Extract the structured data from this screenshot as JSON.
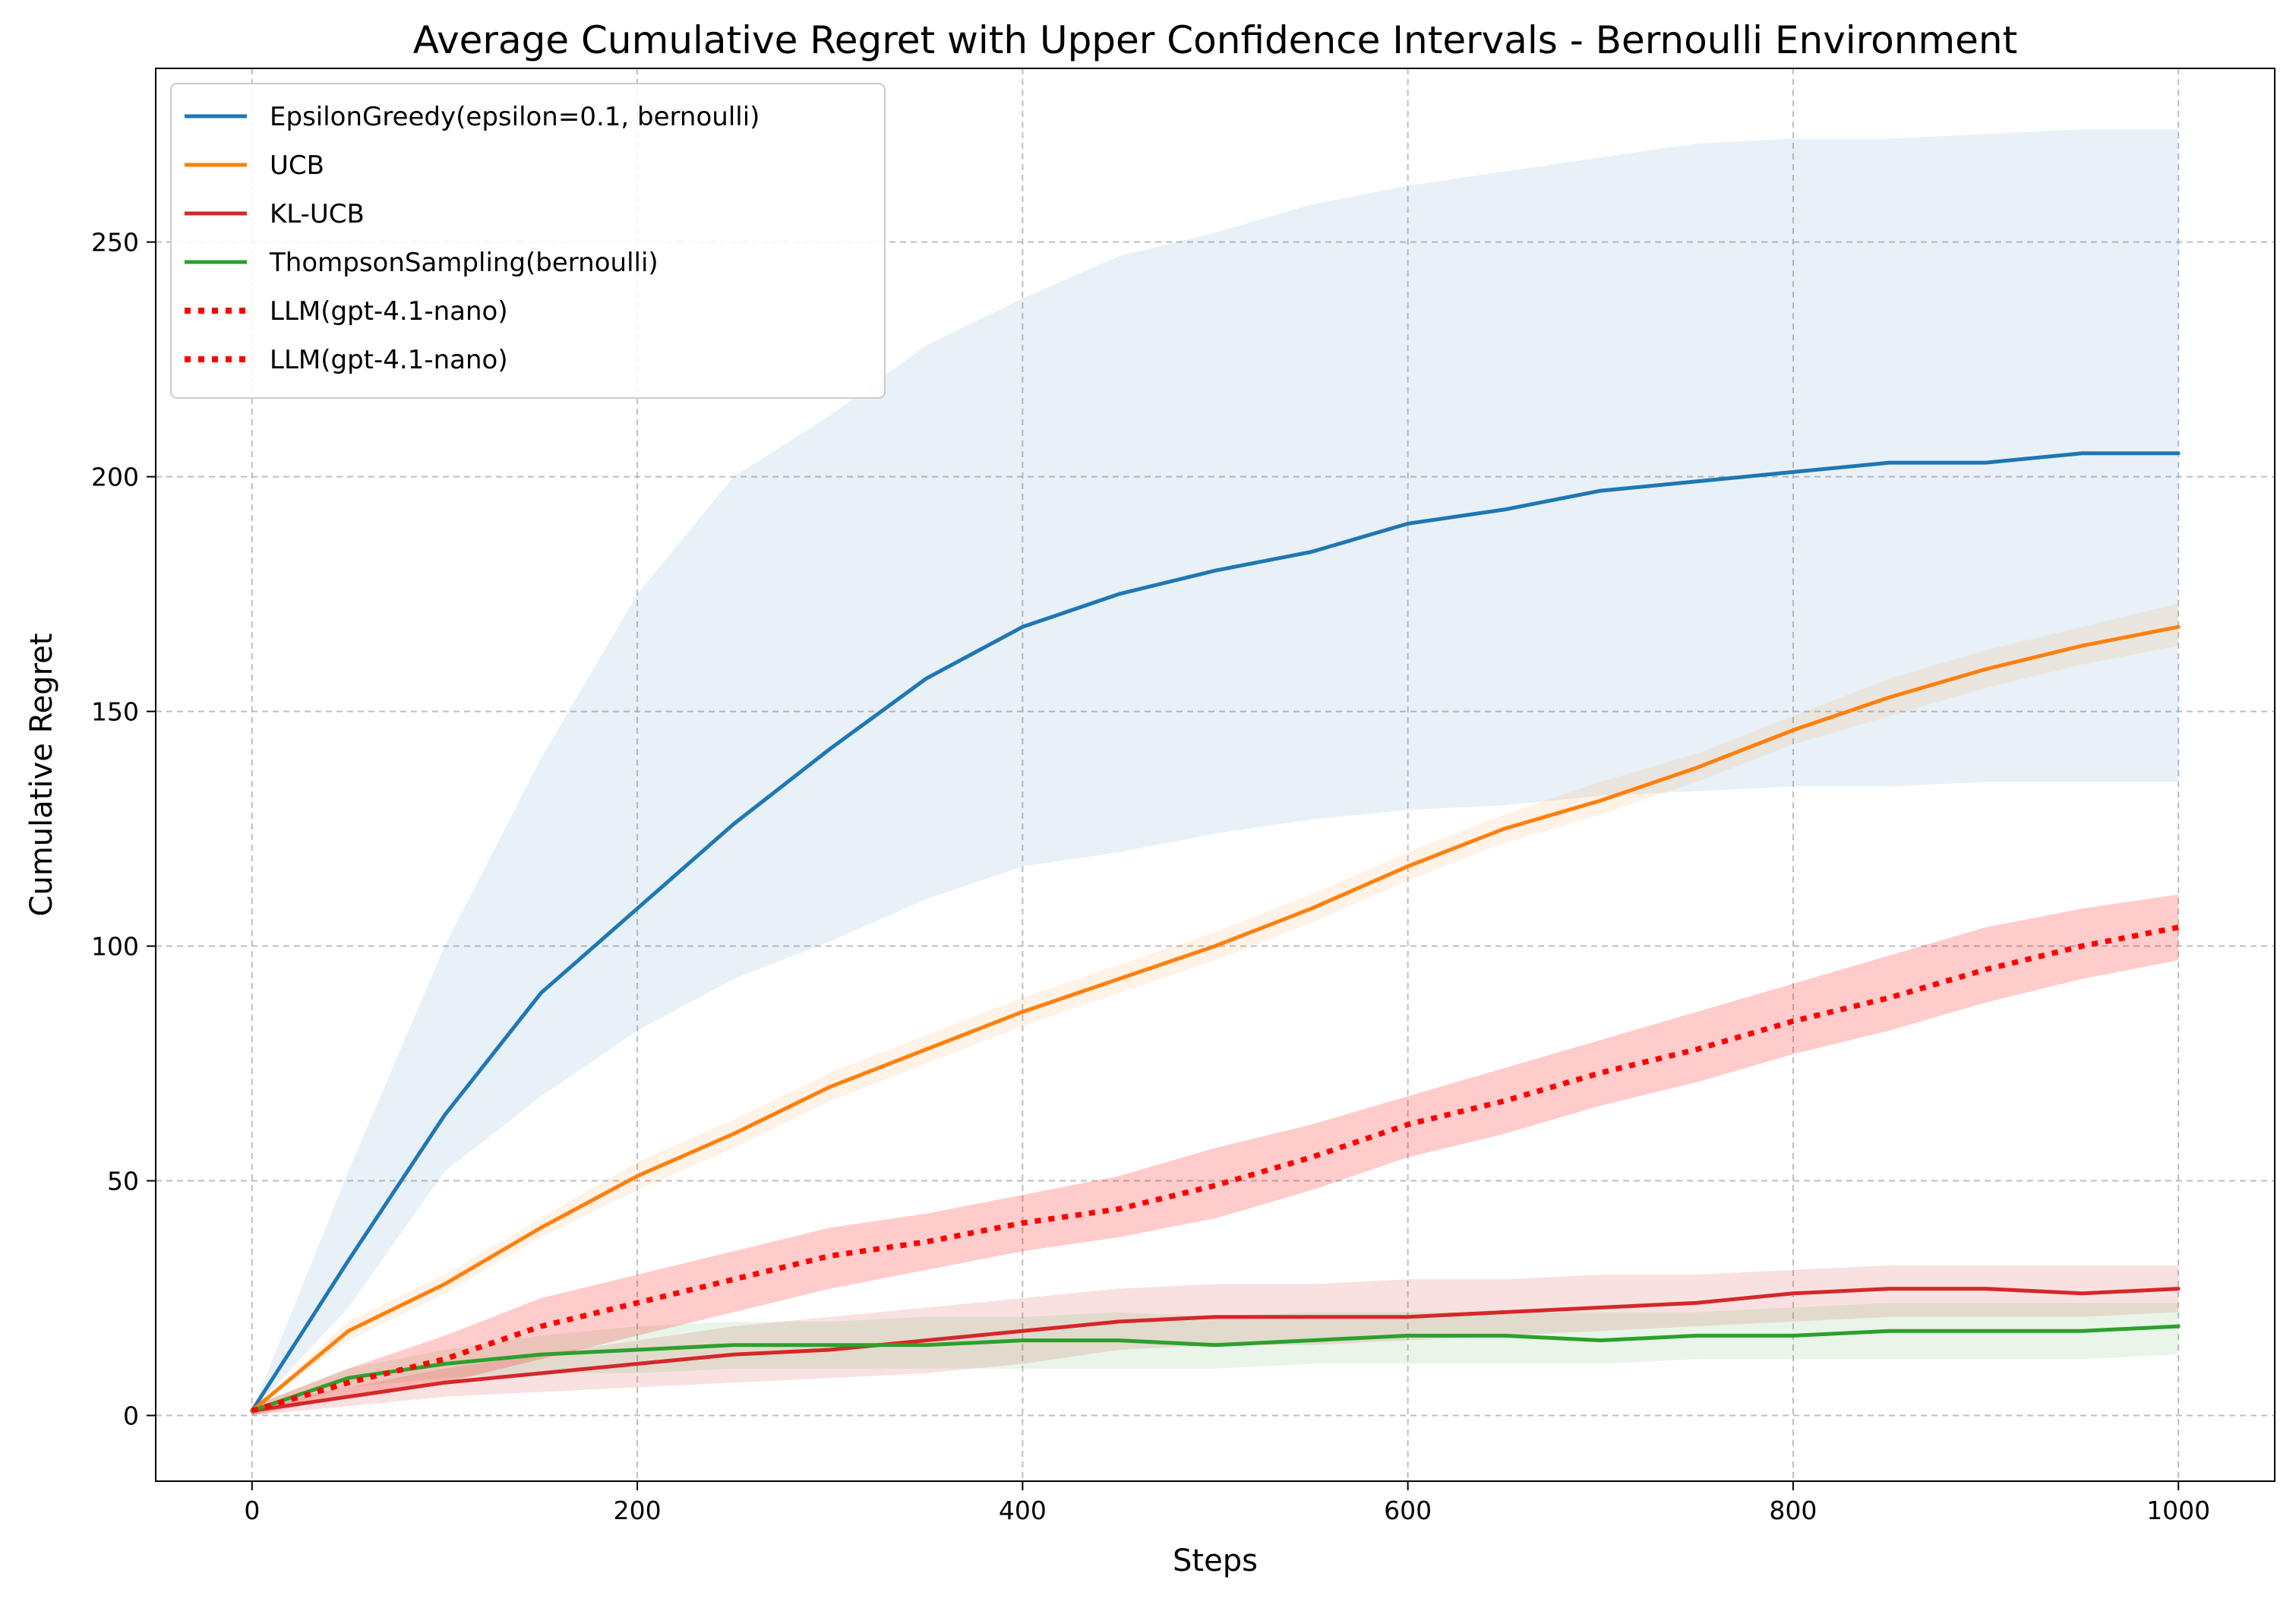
{
  "chart_data": {
    "type": "line",
    "title": "Average Cumulative Regret with Upper Confidence Intervals - Bernoulli Environment",
    "xlabel": "Steps",
    "ylabel": "Cumulative Regret",
    "xlim": [
      -50,
      1050
    ],
    "ylim": [
      -14,
      287
    ],
    "xticks": [
      0,
      200,
      400,
      600,
      800,
      1000
    ],
    "yticks": [
      0,
      50,
      100,
      150,
      200,
      250
    ],
    "xtick_labels": [
      "0",
      "200",
      "400",
      "600",
      "800",
      "1000"
    ],
    "ytick_labels": [
      "0",
      "50",
      "100",
      "150",
      "200",
      "250"
    ],
    "grid": true,
    "legend_position": "top-left",
    "x": [
      0,
      50,
      100,
      150,
      200,
      250,
      300,
      350,
      400,
      450,
      500,
      550,
      600,
      650,
      700,
      750,
      800,
      850,
      900,
      950,
      1000
    ],
    "series": [
      {
        "name": "EpsilonGreedy(epsilon=0.1, bernoulli)",
        "color": "#1f77b4",
        "style": "solid",
        "values": [
          1,
          33,
          64,
          90,
          108,
          126,
          142,
          157,
          168,
          175,
          180,
          184,
          190,
          193,
          197,
          199,
          201,
          203,
          203,
          205,
          205
        ],
        "upper": [
          1,
          52,
          100,
          140,
          175,
          200,
          213,
          228,
          238,
          247,
          252,
          258,
          262,
          265,
          268,
          271,
          272,
          272,
          273,
          274,
          274
        ],
        "lower": [
          1,
          23,
          52,
          68,
          82,
          93,
          101,
          110,
          117,
          120,
          124,
          127,
          129,
          130,
          132,
          133,
          134,
          134,
          135,
          135,
          135
        ]
      },
      {
        "name": "UCB",
        "color": "#ff7f0e",
        "style": "solid",
        "values": [
          1,
          18,
          28,
          40,
          51,
          60,
          70,
          78,
          86,
          93,
          100,
          108,
          117,
          125,
          131,
          138,
          146,
          153,
          159,
          164,
          168
        ],
        "upper": [
          1,
          20,
          30,
          42,
          54,
          63,
          73,
          81,
          89,
          96,
          103,
          111,
          120,
          128,
          135,
          141,
          149,
          157,
          163,
          168,
          173
        ],
        "lower": [
          1,
          16,
          26,
          38,
          48,
          57,
          67,
          75,
          83,
          90,
          97,
          105,
          114,
          122,
          128,
          135,
          143,
          149,
          155,
          160,
          164
        ]
      },
      {
        "name": "KL-UCB",
        "color": "#d62728",
        "style": "solid",
        "values": [
          1,
          4,
          7,
          9,
          11,
          13,
          14,
          16,
          18,
          20,
          21,
          21,
          21,
          22,
          23,
          24,
          26,
          27,
          27,
          26,
          27
        ],
        "upper": [
          2,
          6,
          10,
          13,
          16,
          19,
          21,
          23,
          25,
          27,
          28,
          28,
          29,
          29,
          30,
          30,
          31,
          32,
          32,
          32,
          32
        ],
        "lower": [
          0,
          2,
          4,
          5,
          6,
          7,
          8,
          9,
          11,
          14,
          15,
          15,
          16,
          17,
          18,
          19,
          20,
          21,
          21,
          21,
          22
        ]
      },
      {
        "name": "ThompsonSampling(bernoulli)",
        "color": "#2ca02c",
        "style": "solid",
        "values": [
          1,
          8,
          11,
          13,
          14,
          15,
          15,
          15,
          16,
          16,
          15,
          16,
          17,
          17,
          16,
          17,
          17,
          18,
          18,
          18,
          19
        ],
        "upper": [
          2,
          10,
          14,
          17,
          19,
          20,
          20,
          21,
          21,
          22,
          21,
          22,
          22,
          22,
          22,
          22,
          23,
          24,
          24,
          24,
          24
        ],
        "lower": [
          0,
          6,
          8,
          9,
          9,
          10,
          10,
          10,
          10,
          10,
          10,
          11,
          11,
          11,
          11,
          12,
          12,
          12,
          12,
          12,
          13
        ]
      },
      {
        "name": "LLM(gpt-4.1-nano)",
        "color": "#ff0000",
        "style": "dotted",
        "values": [
          1,
          7,
          12,
          19,
          24,
          29,
          34,
          37,
          41,
          44,
          49,
          55,
          62,
          67,
          73,
          78,
          84,
          89,
          95,
          100,
          104
        ],
        "upper": [
          2,
          10,
          17,
          25,
          30,
          35,
          40,
          43,
          47,
          51,
          57,
          62,
          68,
          74,
          80,
          86,
          92,
          98,
          104,
          108,
          111
        ],
        "lower": [
          0,
          4,
          7,
          12,
          17,
          22,
          27,
          31,
          35,
          38,
          42,
          48,
          55,
          60,
          66,
          71,
          77,
          82,
          88,
          93,
          97
        ]
      },
      {
        "name": "LLM(gpt-4.1-nano)",
        "color": "#ff0000",
        "style": "dotted",
        "values": [
          1,
          7,
          12,
          19,
          24,
          29,
          34,
          37,
          41,
          44,
          49,
          55,
          62,
          67,
          73,
          78,
          84,
          89,
          95,
          100,
          104
        ],
        "upper": [
          2,
          10,
          17,
          25,
          30,
          35,
          40,
          43,
          47,
          51,
          57,
          62,
          68,
          74,
          80,
          86,
          92,
          98,
          104,
          108,
          111
        ],
        "lower": [
          0,
          4,
          7,
          12,
          17,
          22,
          27,
          31,
          35,
          38,
          42,
          48,
          55,
          60,
          66,
          71,
          77,
          82,
          88,
          93,
          97
        ]
      }
    ]
  }
}
